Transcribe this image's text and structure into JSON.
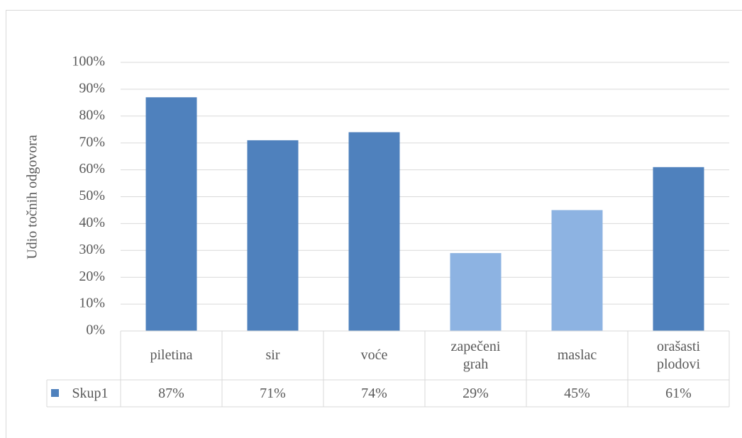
{
  "chart_data": {
    "type": "bar",
    "y_axis_title": "Udio točnih odgovora",
    "categories": [
      "piletina",
      "sir",
      "voće",
      "zapečeni grah",
      "maslac",
      "orašasti plodovi"
    ],
    "series": [
      {
        "name": "Skup1",
        "color": "#4f81bd",
        "point_colors": [
          "#4f81bd",
          "#4f81bd",
          "#4f81bd",
          "#8db3e2",
          "#8db3e2",
          "#4f81bd"
        ],
        "values": [
          87,
          71,
          74,
          29,
          45,
          61
        ],
        "value_labels": [
          "87%",
          "71%",
          "74%",
          "29%",
          "45%",
          "61%"
        ]
      }
    ],
    "ylim": [
      0,
      100
    ],
    "yticks": [
      {
        "value": 0,
        "label": "0%"
      },
      {
        "value": 10,
        "label": "10%"
      },
      {
        "value": 20,
        "label": "20%"
      },
      {
        "value": 30,
        "label": "30%"
      },
      {
        "value": 40,
        "label": "40%"
      },
      {
        "value": 50,
        "label": "50%"
      },
      {
        "value": 60,
        "label": "60%"
      },
      {
        "value": 70,
        "label": "70%"
      },
      {
        "value": 80,
        "label": "80%"
      },
      {
        "value": 90,
        "label": "90%"
      },
      {
        "value": 100,
        "label": "100%"
      }
    ],
    "grid": true
  }
}
